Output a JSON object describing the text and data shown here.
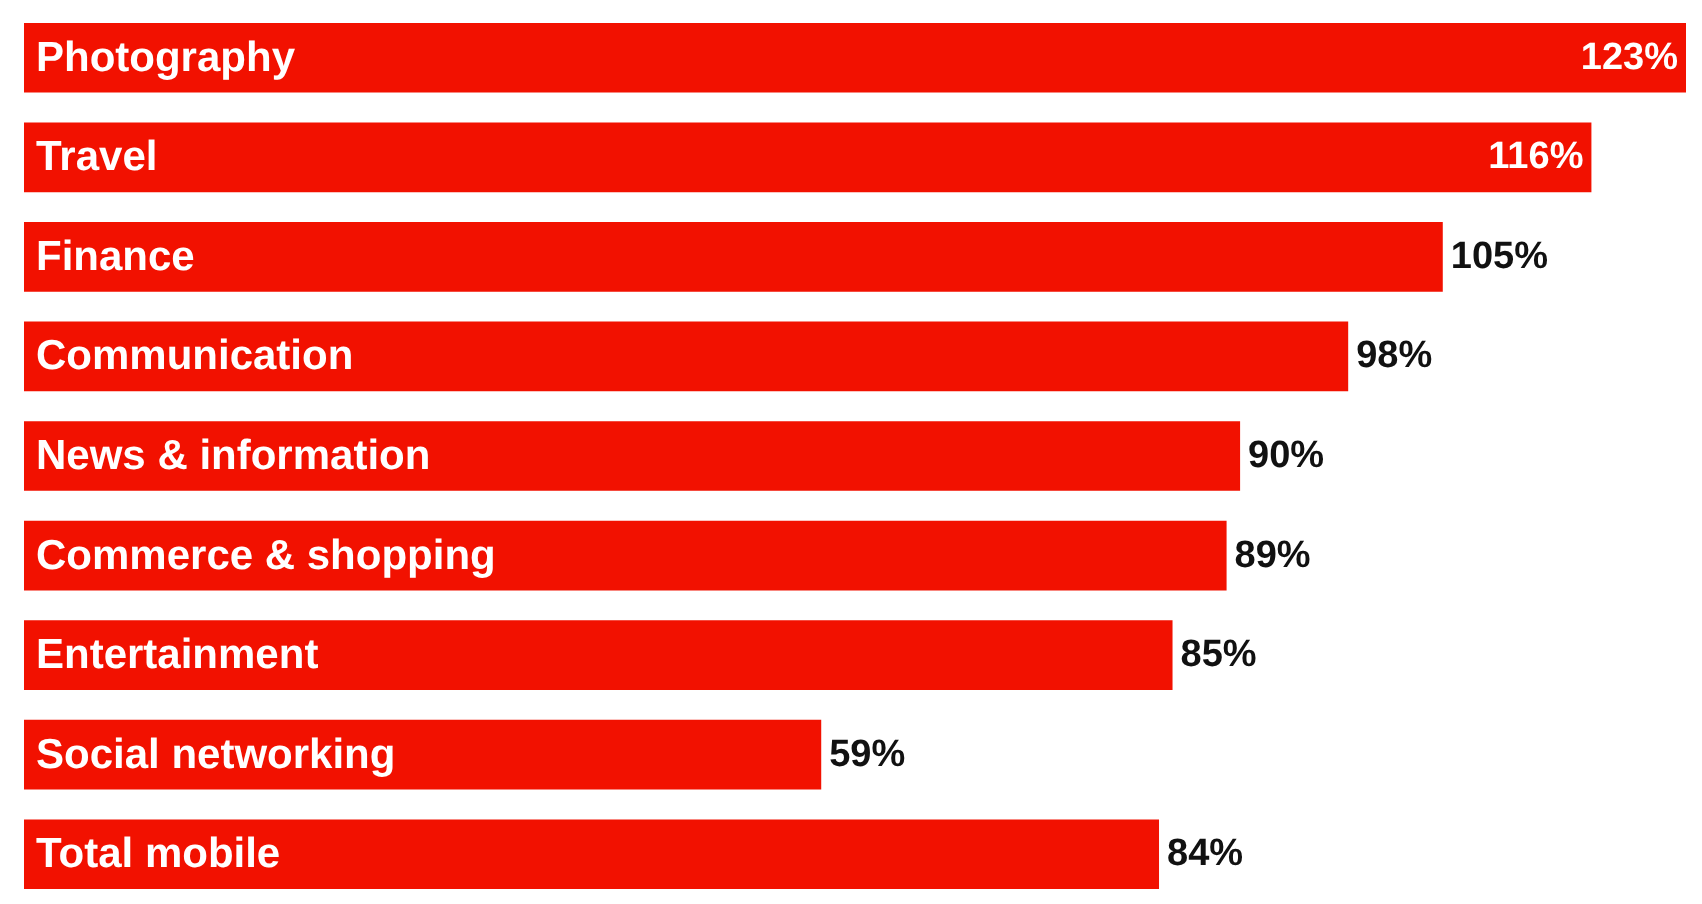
{
  "chart_data": {
    "type": "bar",
    "orientation": "horizontal",
    "categories": [
      "Photography",
      "Travel",
      "Finance",
      "Communication",
      "News & information",
      "Commerce & shopping",
      "Entertainment",
      "Social networking",
      "Total mobile"
    ],
    "values": [
      123,
      116,
      105,
      98,
      90,
      89,
      85,
      59,
      84
    ],
    "value_labels": [
      "123%",
      "116%",
      "105%",
      "98%",
      "90%",
      "89%",
      "85%",
      "59%",
      "84%"
    ],
    "color": "#f21100"
  }
}
